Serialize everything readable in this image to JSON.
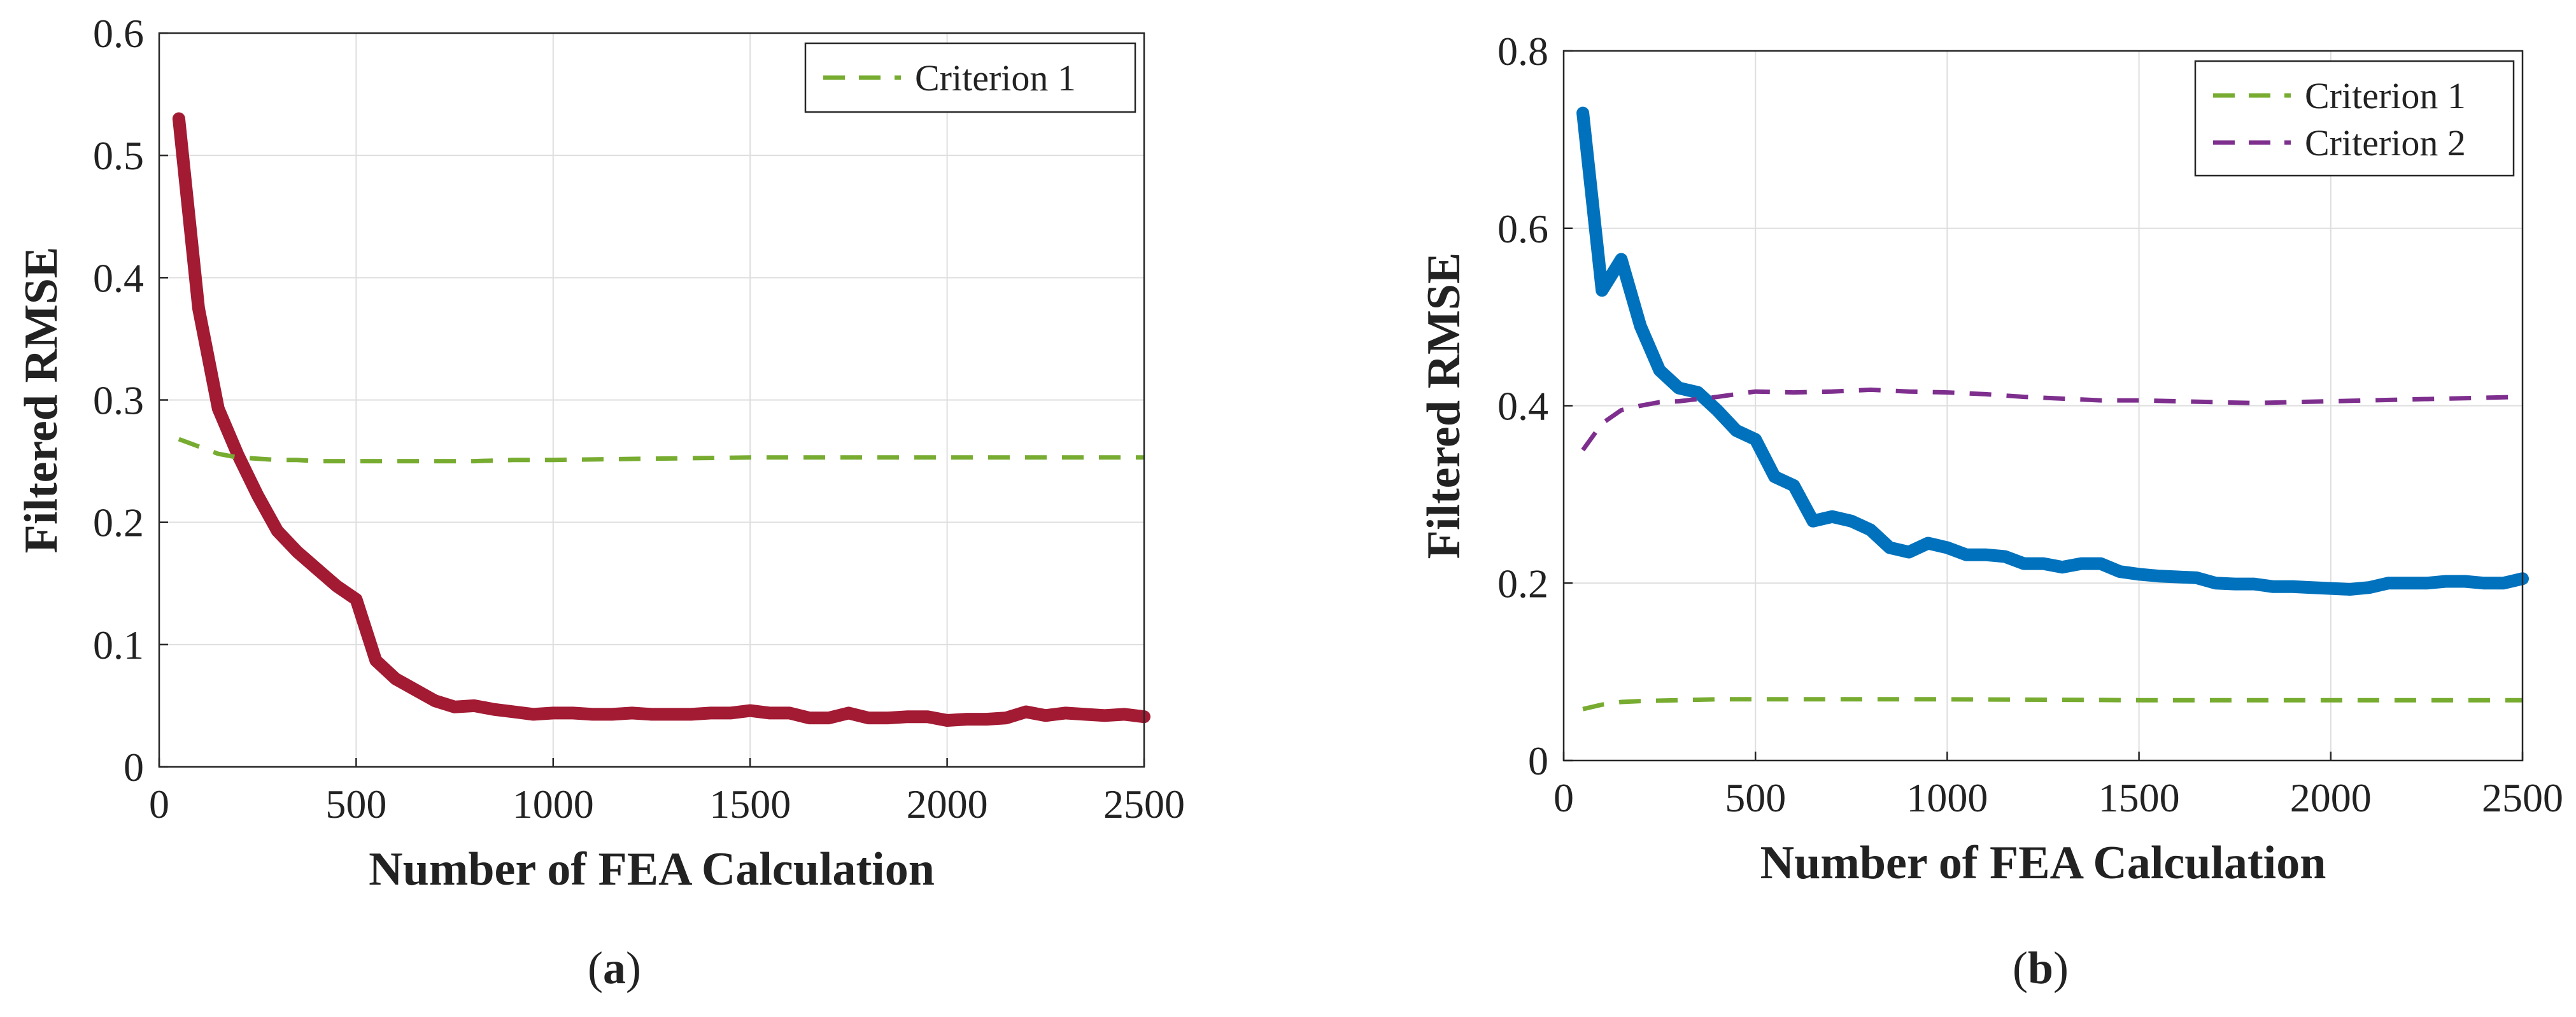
{
  "chart_data": [
    {
      "type": "line",
      "caption": {
        "open": "(",
        "letter": "a",
        "close": ")"
      },
      "xlabel": "Number of FEA Calculation",
      "ylabel": "Filtered RMSE",
      "xlim": [
        0,
        2500
      ],
      "ylim": [
        0,
        0.6
      ],
      "xticks": [
        0,
        500,
        1000,
        1500,
        2000,
        2500
      ],
      "xtick_labels": [
        "0",
        "500",
        "1000",
        "1500",
        "2000",
        "2500"
      ],
      "yticks": [
        0,
        0.1,
        0.2,
        0.3,
        0.4,
        0.5,
        0.6
      ],
      "ytick_labels": [
        "0",
        "0.1",
        "0.2",
        "0.3",
        "0.4",
        "0.5",
        "0.6"
      ],
      "grid": true,
      "legend_position": "top-right",
      "series": [
        {
          "name": "RMSE",
          "in_legend": false,
          "color": "#A31A33",
          "style": "solid",
          "x": [
            50,
            100,
            150,
            200,
            250,
            300,
            350,
            400,
            450,
            500,
            550,
            600,
            650,
            700,
            750,
            800,
            850,
            900,
            950,
            1000,
            1050,
            1100,
            1150,
            1200,
            1250,
            1300,
            1350,
            1400,
            1450,
            1500,
            1550,
            1600,
            1650,
            1700,
            1750,
            1800,
            1850,
            1900,
            1950,
            2000,
            2050,
            2100,
            2150,
            2200,
            2250,
            2300,
            2350,
            2400,
            2450,
            2500
          ],
          "values": [
            0.53,
            0.375,
            0.293,
            0.255,
            0.222,
            0.193,
            0.176,
            0.162,
            0.148,
            0.137,
            0.087,
            0.072,
            0.063,
            0.054,
            0.049,
            0.05,
            0.047,
            0.045,
            0.043,
            0.044,
            0.044,
            0.043,
            0.043,
            0.044,
            0.043,
            0.043,
            0.043,
            0.044,
            0.044,
            0.046,
            0.044,
            0.044,
            0.04,
            0.04,
            0.044,
            0.04,
            0.04,
            0.041,
            0.041,
            0.038,
            0.039,
            0.039,
            0.04,
            0.045,
            0.042,
            0.044,
            0.043,
            0.042,
            0.043,
            0.041
          ]
        },
        {
          "name": "Criterion 1",
          "in_legend": true,
          "color": "#77AC30",
          "style": "dashed",
          "x": [
            50,
            100,
            150,
            200,
            250,
            300,
            350,
            400,
            450,
            500,
            600,
            700,
            800,
            900,
            1000,
            1250,
            1500,
            1750,
            2000,
            2250,
            2500
          ],
          "values": [
            0.268,
            0.262,
            0.256,
            0.253,
            0.252,
            0.251,
            0.251,
            0.25,
            0.25,
            0.25,
            0.25,
            0.25,
            0.25,
            0.251,
            0.251,
            0.252,
            0.253,
            0.253,
            0.253,
            0.253,
            0.253
          ]
        }
      ]
    },
    {
      "type": "line",
      "caption": {
        "open": "(",
        "letter": "b",
        "close": ")"
      },
      "xlabel": "Number of FEA Calculation",
      "ylabel": "Filtered RMSE",
      "xlim": [
        0,
        2500
      ],
      "ylim": [
        0,
        0.8
      ],
      "xticks": [
        0,
        500,
        1000,
        1500,
        2000,
        2500
      ],
      "xtick_labels": [
        "0",
        "500",
        "1000",
        "1500",
        "2000",
        "2500"
      ],
      "yticks": [
        0,
        0.2,
        0.4,
        0.6,
        0.8
      ],
      "ytick_labels": [
        "0",
        "0.2",
        "0.4",
        "0.6",
        "0.8"
      ],
      "grid": true,
      "legend_position": "top-right",
      "series": [
        {
          "name": "RMSE",
          "in_legend": false,
          "color": "#0072BD",
          "style": "solid",
          "x": [
            50,
            100,
            150,
            200,
            250,
            300,
            350,
            400,
            450,
            500,
            550,
            600,
            650,
            700,
            750,
            800,
            850,
            900,
            950,
            1000,
            1050,
            1100,
            1150,
            1200,
            1250,
            1300,
            1350,
            1400,
            1450,
            1500,
            1550,
            1600,
            1650,
            1700,
            1750,
            1800,
            1850,
            1900,
            1950,
            2000,
            2050,
            2100,
            2150,
            2200,
            2250,
            2300,
            2350,
            2400,
            2450,
            2500
          ],
          "values": [
            0.73,
            0.53,
            0.565,
            0.49,
            0.44,
            0.42,
            0.415,
            0.395,
            0.372,
            0.362,
            0.32,
            0.31,
            0.27,
            0.275,
            0.27,
            0.26,
            0.24,
            0.235,
            0.245,
            0.24,
            0.232,
            0.232,
            0.23,
            0.222,
            0.222,
            0.218,
            0.222,
            0.222,
            0.213,
            0.21,
            0.208,
            0.207,
            0.206,
            0.2,
            0.199,
            0.199,
            0.196,
            0.196,
            0.195,
            0.194,
            0.193,
            0.195,
            0.2,
            0.2,
            0.2,
            0.202,
            0.202,
            0.2,
            0.2,
            0.205
          ]
        },
        {
          "name": "Criterion 1",
          "in_legend": true,
          "color": "#77AC30",
          "style": "dashed",
          "x": [
            50,
            100,
            150,
            200,
            300,
            400,
            500,
            700,
            1000,
            1500,
            2000,
            2500
          ],
          "values": [
            0.058,
            0.063,
            0.066,
            0.067,
            0.068,
            0.069,
            0.069,
            0.069,
            0.069,
            0.068,
            0.068,
            0.068
          ]
        },
        {
          "name": "Criterion 2",
          "in_legend": true,
          "color": "#7E2F8E",
          "style": "dashed",
          "x": [
            50,
            100,
            150,
            200,
            250,
            300,
            400,
            500,
            600,
            700,
            800,
            900,
            1000,
            1100,
            1200,
            1300,
            1400,
            1500,
            1600,
            1700,
            1800,
            1900,
            2000,
            2100,
            2200,
            2300,
            2400,
            2500
          ],
          "values": [
            0.35,
            0.38,
            0.395,
            0.4,
            0.404,
            0.405,
            0.41,
            0.416,
            0.415,
            0.416,
            0.418,
            0.416,
            0.415,
            0.413,
            0.41,
            0.408,
            0.406,
            0.406,
            0.405,
            0.404,
            0.403,
            0.404,
            0.405,
            0.406,
            0.407,
            0.408,
            0.409,
            0.41
          ]
        }
      ]
    }
  ]
}
